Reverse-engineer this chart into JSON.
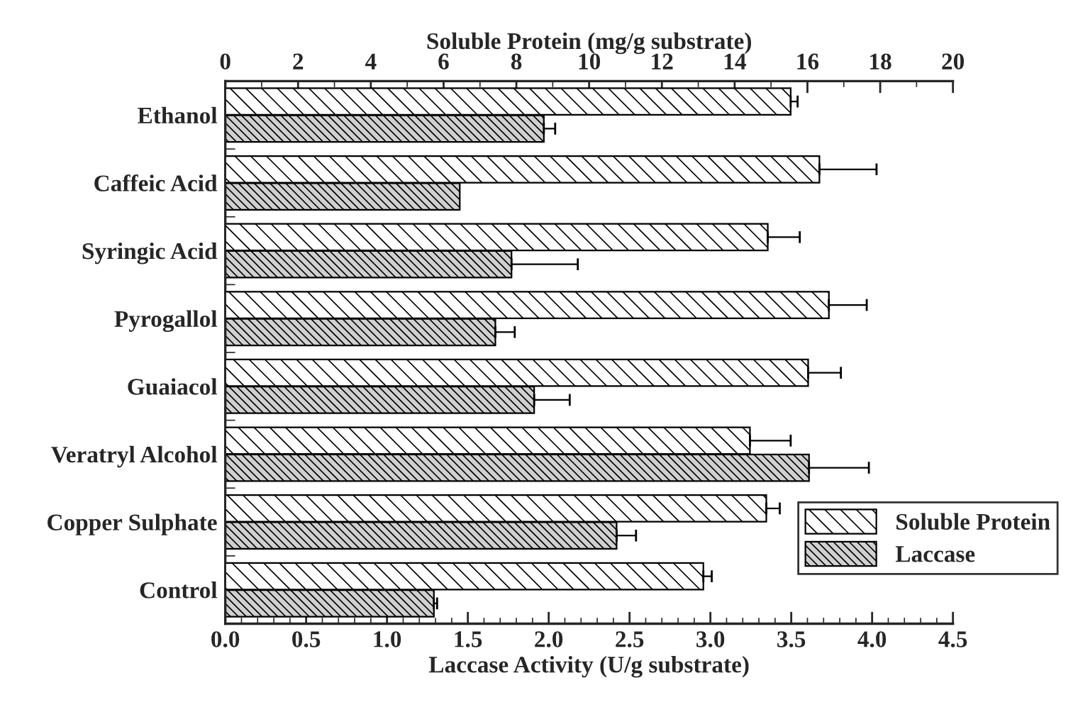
{
  "chart_data": {
    "type": "bar",
    "orientation": "horizontal",
    "categories": [
      "Ethanol",
      "Caffeic Acid",
      "Syringic Acid",
      "Pyrogallol",
      "Guaiacol",
      "Veratryl Alcohol",
      "Copper Sulphate",
      "Control"
    ],
    "series": [
      {
        "name": "Soluble Protein",
        "color": "#ffffff",
        "axis": "x2",
        "values": [
          15.54,
          16.33,
          14.91,
          16.59,
          16.02,
          14.42,
          14.87,
          13.14
        ],
        "errors": [
          [
            15.54,
            15.73
          ],
          [
            16.33,
            17.9
          ],
          [
            14.91,
            15.79
          ],
          [
            16.59,
            17.63
          ],
          [
            16.02,
            16.92
          ],
          [
            14.42,
            15.54
          ],
          [
            14.87,
            15.24
          ],
          [
            13.14,
            13.37
          ]
        ]
      },
      {
        "name": "Laccase",
        "color": "#d0d0d0",
        "values": [
          1.97,
          1.45,
          1.77,
          1.67,
          1.91,
          3.61,
          2.42,
          1.29
        ],
        "errors": [
          [
            1.97,
            2.04
          ],
          null,
          [
            1.77,
            2.18
          ],
          [
            1.67,
            1.79
          ],
          [
            1.91,
            2.13
          ],
          [
            3.61,
            3.98
          ],
          [
            2.42,
            2.54
          ],
          [
            1.29,
            1.31
          ]
        ]
      }
    ],
    "xlabel": "Laccase Activity (U/g substrate)",
    "x2label": "Soluble Protein (mg/g substrate)",
    "xlim": [
      0,
      4.5
    ],
    "xticks": [
      {
        "value": 0,
        "label": "0.0"
      },
      0.5,
      {
        "value": 1,
        "label": "1.0"
      },
      1.5,
      {
        "value": 2,
        "label": "2.0"
      },
      2.5,
      {
        "value": 3,
        "label": "3.0"
      },
      3.5,
      {
        "value": 4,
        "label": "4.0"
      },
      4.5
    ],
    "x2lim": [
      0,
      20
    ],
    "x2ticks": [
      0,
      2,
      4,
      6,
      8,
      10,
      12,
      14,
      16,
      18,
      20
    ],
    "legend": "bottom right",
    "grid": false
  }
}
